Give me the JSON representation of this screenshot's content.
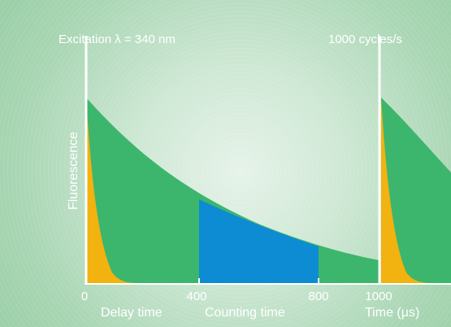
{
  "top_label_left": "Excitation λ = 340 nm",
  "top_label_right": "1000 cycles/s",
  "y_axis_label": "Fluorescence",
  "x_ticks": [
    "0",
    "400",
    "800",
    "1000"
  ],
  "x_axis_label": "Time (µs)",
  "region_labels": {
    "delay": "Delay time",
    "counting": "Counting time"
  },
  "colors": {
    "background": "#a9d6b4",
    "long_decay": "#3cb66d",
    "short_decay": "#f2b20f",
    "counting_window": "#0d8bd3",
    "text": "#ffffff"
  }
}
